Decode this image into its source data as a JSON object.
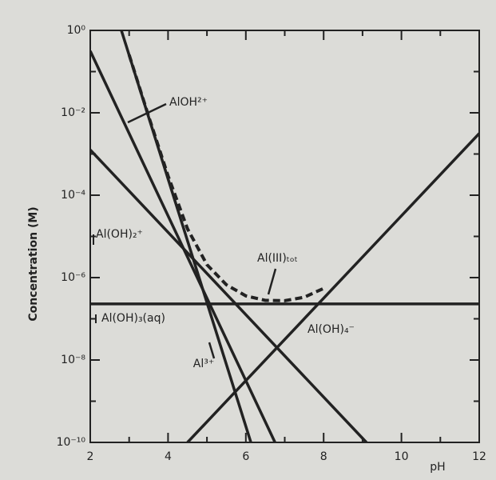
{
  "chart_data": {
    "type": "line",
    "xlabel": "pH",
    "ylabel": "Concentration (M)",
    "log_y": true,
    "xlim": [
      2,
      12
    ],
    "xticks": [
      2,
      4,
      6,
      8,
      10,
      12
    ],
    "ylim": [
      1e-10,
      1
    ],
    "yticks": [
      {
        "value": 1,
        "label": "10⁰"
      },
      {
        "value": 0.01,
        "label": "10⁻²"
      },
      {
        "value": 0.0001,
        "label": "10⁻⁴"
      },
      {
        "value": 1e-06,
        "label": "10⁻⁶"
      },
      {
        "value": 1e-08,
        "label": "10⁻⁸"
      },
      {
        "value": 1e-10,
        "label": "10⁻¹⁰"
      }
    ],
    "series": [
      {
        "name": "Al³⁺",
        "color": "#222222",
        "x": [
          2.8,
          6.13
        ],
        "values": [
          1,
          1e-10
        ]
      },
      {
        "name": "AlOH²⁺",
        "color": "#222222",
        "x": [
          2,
          6.75
        ],
        "values": [
          0.316,
          1e-10
        ]
      },
      {
        "name": "Al(OH)₂⁺",
        "color": "#222222",
        "x": [
          2,
          9.1
        ],
        "values": [
          0.00126,
          1e-10
        ]
      },
      {
        "name": "Al(OH)₃(aq)",
        "color": "#222222",
        "x": [
          2,
          12
        ],
        "values": [
          2.3e-07,
          2.3e-07
        ]
      },
      {
        "name": "Al(OH)₄⁻",
        "color": "#222222",
        "x": [
          4.5,
          12
        ],
        "values": [
          1e-10,
          0.00316
        ]
      },
      {
        "name": "Al(III)ₜₒₜ",
        "color": "#222222",
        "dashed": true,
        "x": [
          3,
          3.5,
          4,
          4.5,
          5,
          5.5,
          6,
          6.5,
          7,
          7.5,
          8
        ],
        "values": [
          0.255,
          0.00826,
          0.000295,
          1.53e-05,
          2.06e-06,
          6.7e-07,
          3.6e-07,
          2.8e-07,
          2.75e-07,
          3.34e-07,
          5.47e-07
        ]
      }
    ]
  }
}
